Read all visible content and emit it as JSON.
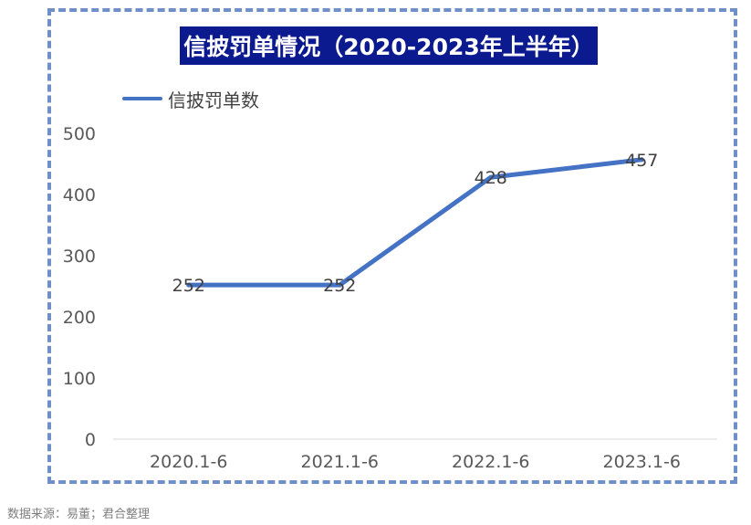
{
  "chart_data": {
    "type": "line",
    "title": "信披罚单情况（2020-2023年上半年）",
    "categories": [
      "2020.1-6",
      "2021.1-6",
      "2022.1-6",
      "2023.1-6"
    ],
    "series": [
      {
        "name": "信披罚单数",
        "values": [
          252,
          252,
          428,
          457
        ]
      }
    ],
    "ylim": [
      0,
      500
    ],
    "yticks": [
      0,
      100,
      200,
      300,
      400,
      500
    ],
    "grid": false,
    "legend": "top-left",
    "line_color": "#4472c4",
    "title_bg_color": "#0b1a8f",
    "frame_color": "#6f8fc9"
  },
  "source_note": "数据来源：易董；君合整理"
}
